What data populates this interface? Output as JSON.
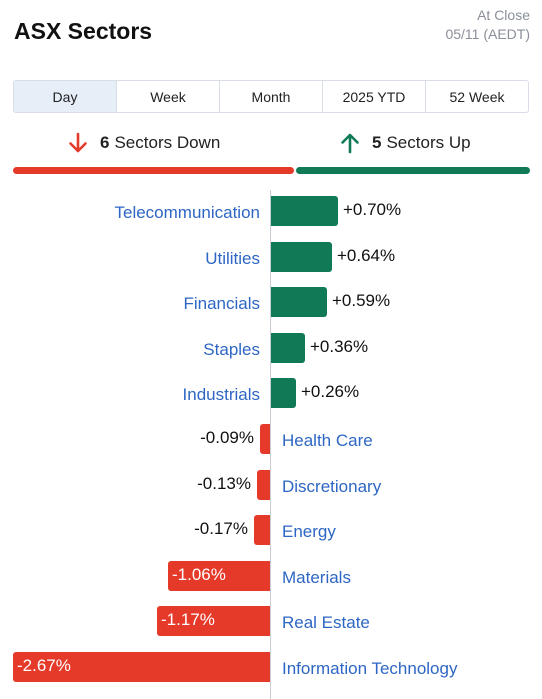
{
  "header": {
    "title": "ASX Sectors",
    "status_line1": "At Close",
    "status_line2": "05/11 (AEDT)"
  },
  "tabs": [
    {
      "label": "Day",
      "active": true
    },
    {
      "label": "Week",
      "active": false
    },
    {
      "label": "Month",
      "active": false
    },
    {
      "label": "2025 YTD",
      "active": false
    },
    {
      "label": "52 Week",
      "active": false
    }
  ],
  "summary": {
    "down_count": "6",
    "down_label": "Sectors Down",
    "up_count": "5",
    "up_label": "Sectors Up",
    "down_icon": "arrow-down-icon",
    "up_icon": "arrow-up-icon"
  },
  "colors": {
    "up": "#0f7a55",
    "down": "#e53a2a",
    "link": "#2d66c4"
  },
  "sectors": [
    {
      "name": "Telecommunication",
      "label": "+0.70%",
      "value": 0.7
    },
    {
      "name": "Utilities",
      "label": "+0.64%",
      "value": 0.64
    },
    {
      "name": "Financials",
      "label": "+0.59%",
      "value": 0.59
    },
    {
      "name": "Staples",
      "label": "+0.36%",
      "value": 0.36
    },
    {
      "name": "Industrials",
      "label": "+0.26%",
      "value": 0.26
    },
    {
      "name": "Health Care",
      "label": "-0.09%",
      "value": -0.09
    },
    {
      "name": "Discretionary",
      "label": "-0.13%",
      "value": -0.13
    },
    {
      "name": "Energy",
      "label": "-0.17%",
      "value": -0.17
    },
    {
      "name": "Materials",
      "label": "-1.06%",
      "value": -1.06
    },
    {
      "name": "Real Estate",
      "label": "-1.17%",
      "value": -1.17
    },
    {
      "name": "Information Technology",
      "label": "-2.67%",
      "value": -2.67
    }
  ]
}
